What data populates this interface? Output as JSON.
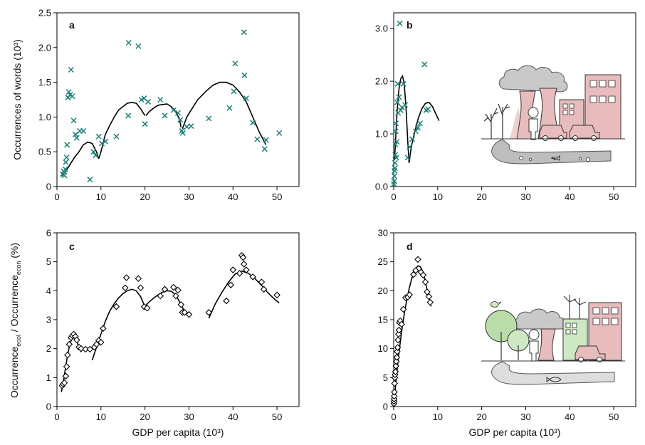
{
  "figure": {
    "xlabel": "GDP per capita (10³)",
    "ylabel_top": "Occurrences of words (10³)",
    "ylabel_bottom": {
      "main1": "Occurrence",
      "sub1": "ecol",
      "sep": " / Occurrence",
      "sub2": "econ",
      "tail": " (%)"
    }
  },
  "colors": {
    "cross_marker": "#1e7f7a",
    "diamond_marker": "#000000",
    "grey_smoke": "#c9c9c9",
    "pink_building": "#e8bcbc",
    "green_building": "#cfe8c4",
    "green_tree": "#b9dca8",
    "road_grey": "#bdbdbd"
  },
  "chart_data": [
    {
      "panel": "a",
      "type": "scatter",
      "marker": "x",
      "xlim": [
        0,
        55
      ],
      "ylim": [
        0,
        2.5
      ],
      "xticks": [
        "0",
        "10",
        "20",
        "30",
        "40",
        "50"
      ],
      "yticks": [
        "0",
        "0.5",
        "1.0",
        "1.5",
        "2.0",
        "2.5"
      ],
      "points": [
        [
          1.3,
          0.18
        ],
        [
          1.5,
          0.22
        ],
        [
          1.7,
          0.16
        ],
        [
          1.9,
          0.25
        ],
        [
          2.0,
          0.35
        ],
        [
          2.2,
          0.42
        ],
        [
          2.3,
          0.6
        ],
        [
          2.5,
          1.28
        ],
        [
          2.7,
          1.36
        ],
        [
          3.0,
          1.32
        ],
        [
          3.2,
          1.68
        ],
        [
          3.5,
          1.3
        ],
        [
          3.8,
          0.95
        ],
        [
          4.2,
          0.75
        ],
        [
          4.5,
          0.7
        ],
        [
          5.2,
          0.8
        ],
        [
          6.0,
          0.8
        ],
        [
          7.5,
          0.1
        ],
        [
          8.3,
          0.5
        ],
        [
          8.8,
          0.45
        ],
        [
          9.5,
          0.72
        ],
        [
          10.2,
          0.62
        ],
        [
          11.0,
          0.65
        ],
        [
          13.5,
          0.72
        ],
        [
          16.2,
          1.02
        ],
        [
          16.3,
          2.07
        ],
        [
          18.5,
          2.02
        ],
        [
          19.2,
          1.25
        ],
        [
          19.8,
          1.27
        ],
        [
          20.0,
          0.9
        ],
        [
          20.7,
          1.22
        ],
        [
          23.5,
          1.25
        ],
        [
          24.5,
          1.02
        ],
        [
          26.5,
          1.1
        ],
        [
          27.5,
          1.06
        ],
        [
          28.0,
          0.96
        ],
        [
          28.4,
          0.8
        ],
        [
          28.6,
          0.77
        ],
        [
          29.5,
          0.86
        ],
        [
          30.5,
          0.87
        ],
        [
          34.5,
          0.98
        ],
        [
          39.2,
          1.13
        ],
        [
          40.2,
          1.37
        ],
        [
          40.5,
          1.77
        ],
        [
          42.5,
          2.22
        ],
        [
          42.6,
          1.6
        ],
        [
          43.0,
          1.27
        ],
        [
          44.5,
          0.92
        ],
        [
          45.5,
          0.68
        ],
        [
          47.2,
          0.54
        ],
        [
          47.5,
          0.67
        ],
        [
          50.5,
          0.77
        ]
      ],
      "fits": [
        [
          [
            1.0,
            0.15
          ],
          [
            2.0,
            0.22
          ],
          [
            3.0,
            0.32
          ],
          [
            4.0,
            0.42
          ],
          [
            5.0,
            0.5
          ],
          [
            6.0,
            0.6
          ],
          [
            7.0,
            0.64
          ],
          [
            8.0,
            0.62
          ],
          [
            9.0,
            0.5
          ],
          [
            9.5,
            0.4
          ]
        ],
        [
          [
            9.5,
            0.4
          ],
          [
            10.0,
            0.5
          ],
          [
            11.0,
            0.75
          ],
          [
            12.0,
            0.88
          ],
          [
            13.0,
            1.0
          ],
          [
            14.0,
            1.1
          ],
          [
            15.0,
            1.15
          ],
          [
            16.0,
            1.2
          ],
          [
            17.0,
            1.21
          ],
          [
            18.0,
            1.2
          ],
          [
            19.0,
            1.12
          ],
          [
            20.0,
            1.02
          ]
        ],
        [
          [
            20.2,
            1.02
          ],
          [
            21.0,
            1.08
          ],
          [
            22.0,
            1.13
          ],
          [
            23.0,
            1.17
          ],
          [
            24.0,
            1.18
          ],
          [
            25.0,
            1.19
          ],
          [
            26.0,
            1.15
          ],
          [
            27.0,
            1.07
          ],
          [
            27.8,
            0.98
          ],
          [
            28.2,
            0.85
          ]
        ],
        [
          [
            28.5,
            0.83
          ],
          [
            29.5,
            1.0
          ],
          [
            30.5,
            1.1
          ],
          [
            32.0,
            1.25
          ],
          [
            34.0,
            1.38
          ],
          [
            35.5,
            1.46
          ],
          [
            37.0,
            1.5
          ],
          [
            38.5,
            1.5
          ],
          [
            40.0,
            1.46
          ],
          [
            41.5,
            1.36
          ],
          [
            43.0,
            1.22
          ],
          [
            44.5,
            1.0
          ],
          [
            46.0,
            0.78
          ],
          [
            47.5,
            0.6
          ]
        ]
      ]
    },
    {
      "panel": "b",
      "type": "scatter",
      "marker": "x",
      "xlim": [
        0,
        55
      ],
      "ylim": [
        0,
        3.3
      ],
      "xticks": [
        "0",
        "10",
        "20",
        "30",
        "40",
        "50"
      ],
      "yticks": [
        "0.0",
        "1.0",
        "2.0",
        "3.0"
      ],
      "points": [
        [
          0.05,
          0.05
        ],
        [
          0.1,
          0.1
        ],
        [
          0.15,
          0.2
        ],
        [
          0.2,
          0.3
        ],
        [
          0.25,
          0.35
        ],
        [
          0.3,
          0.45
        ],
        [
          0.35,
          0.6
        ],
        [
          0.4,
          0.8
        ],
        [
          0.45,
          1.05
        ],
        [
          0.5,
          1.2
        ],
        [
          0.6,
          0.55
        ],
        [
          0.7,
          0.85
        ],
        [
          0.8,
          1.6
        ],
        [
          0.9,
          1.95
        ],
        [
          1.0,
          1.4
        ],
        [
          1.2,
          1.7
        ],
        [
          1.4,
          3.1
        ],
        [
          1.6,
          1.45
        ],
        [
          1.9,
          1.5
        ],
        [
          2.2,
          1.95
        ],
        [
          2.6,
          1.55
        ],
        [
          3.2,
          0.55
        ],
        [
          3.6,
          0.75
        ],
        [
          4.2,
          0.9
        ],
        [
          5.0,
          1.05
        ],
        [
          5.5,
          1.12
        ],
        [
          6.0,
          1.2
        ],
        [
          7.0,
          2.32
        ],
        [
          7.4,
          1.45
        ],
        [
          7.8,
          1.47
        ]
      ],
      "fits": [
        [
          [
            0.2,
            0.5
          ],
          [
            0.5,
            1.0
          ],
          [
            0.8,
            1.45
          ],
          [
            1.2,
            1.85
          ],
          [
            1.6,
            2.05
          ],
          [
            2.0,
            2.1
          ],
          [
            2.4,
            1.95
          ],
          [
            2.8,
            1.5
          ],
          [
            3.2,
            0.85
          ],
          [
            3.5,
            0.45
          ]
        ],
        [
          [
            3.5,
            0.45
          ],
          [
            4.0,
            0.75
          ],
          [
            4.8,
            1.05
          ],
          [
            5.6,
            1.3
          ],
          [
            6.4,
            1.48
          ],
          [
            7.2,
            1.58
          ],
          [
            8.0,
            1.6
          ],
          [
            8.8,
            1.52
          ],
          [
            9.6,
            1.38
          ],
          [
            10.3,
            1.25
          ]
        ]
      ]
    },
    {
      "panel": "c",
      "type": "scatter",
      "marker": "diamond",
      "xlim": [
        0,
        55
      ],
      "ylim": [
        0,
        6
      ],
      "xticks": [
        "0",
        "10",
        "20",
        "30",
        "40",
        "50"
      ],
      "yticks": [
        "0",
        "1",
        "2",
        "3",
        "4",
        "5",
        "6"
      ],
      "points": [
        [
          1.2,
          0.72
        ],
        [
          1.4,
          0.78
        ],
        [
          1.7,
          0.82
        ],
        [
          2.0,
          1.05
        ],
        [
          2.2,
          1.38
        ],
        [
          2.4,
          1.78
        ],
        [
          2.8,
          2.15
        ],
        [
          3.2,
          2.38
        ],
        [
          3.5,
          2.45
        ],
        [
          3.8,
          2.5
        ],
        [
          4.2,
          2.42
        ],
        [
          4.5,
          2.3
        ],
        [
          5.0,
          2.05
        ],
        [
          5.5,
          2.0
        ],
        [
          6.5,
          1.98
        ],
        [
          7.5,
          1.98
        ],
        [
          8.5,
          2.05
        ],
        [
          9.0,
          2.15
        ],
        [
          9.5,
          2.28
        ],
        [
          10.0,
          2.22
        ],
        [
          10.5,
          2.7
        ],
        [
          13.5,
          3.45
        ],
        [
          15.5,
          4.1
        ],
        [
          15.8,
          4.45
        ],
        [
          18.5,
          4.42
        ],
        [
          19.0,
          4.1
        ],
        [
          19.8,
          3.45
        ],
        [
          20.5,
          3.4
        ],
        [
          23.5,
          3.82
        ],
        [
          24.5,
          4.05
        ],
        [
          26.5,
          4.12
        ],
        [
          27.0,
          3.82
        ],
        [
          27.5,
          4.02
        ],
        [
          28.2,
          3.52
        ],
        [
          28.5,
          3.25
        ],
        [
          29.0,
          3.25
        ],
        [
          30.0,
          3.18
        ],
        [
          34.5,
          3.25
        ],
        [
          38.5,
          3.65
        ],
        [
          39.5,
          4.2
        ],
        [
          40.0,
          4.72
        ],
        [
          41.5,
          4.6
        ],
        [
          42.0,
          5.22
        ],
        [
          42.3,
          5.15
        ],
        [
          42.5,
          4.92
        ],
        [
          43.0,
          4.72
        ],
        [
          44.5,
          4.48
        ],
        [
          46.5,
          4.3
        ],
        [
          47.0,
          4.05
        ],
        [
          50.0,
          3.85
        ]
      ],
      "fits": [
        [
          [
            1.0,
            0.5
          ],
          [
            1.5,
            0.9
          ],
          [
            2.0,
            1.4
          ],
          [
            2.5,
            1.85
          ],
          [
            3.0,
            2.2
          ],
          [
            3.5,
            2.35
          ],
          [
            4.0,
            2.38
          ],
          [
            4.5,
            2.25
          ],
          [
            5.0,
            2.05
          ],
          [
            5.5,
            1.88
          ]
        ],
        [
          [
            8.0,
            1.6
          ],
          [
            9.0,
            2.05
          ],
          [
            10.0,
            2.5
          ],
          [
            11.0,
            2.95
          ],
          [
            12.0,
            3.3
          ],
          [
            13.0,
            3.55
          ],
          [
            14.0,
            3.75
          ],
          [
            15.0,
            3.9
          ],
          [
            16.0,
            4.0
          ],
          [
            17.0,
            4.05
          ],
          [
            18.0,
            4.0
          ],
          [
            19.0,
            3.8
          ],
          [
            20.0,
            3.45
          ]
        ],
        [
          [
            20.2,
            3.5
          ],
          [
            21.0,
            3.62
          ],
          [
            22.0,
            3.75
          ],
          [
            23.0,
            3.86
          ],
          [
            24.0,
            3.95
          ],
          [
            25.0,
            4.0
          ],
          [
            26.0,
            3.98
          ],
          [
            27.0,
            3.85
          ],
          [
            28.0,
            3.58
          ],
          [
            29.0,
            3.28
          ],
          [
            30.0,
            3.1
          ]
        ],
        [
          [
            34.5,
            3.05
          ],
          [
            36.0,
            3.55
          ],
          [
            37.5,
            3.95
          ],
          [
            39.0,
            4.3
          ],
          [
            40.5,
            4.58
          ],
          [
            42.0,
            4.68
          ],
          [
            43.5,
            4.6
          ],
          [
            45.0,
            4.42
          ],
          [
            46.5,
            4.18
          ],
          [
            48.0,
            3.92
          ],
          [
            49.5,
            3.7
          ],
          [
            50.5,
            3.58
          ]
        ]
      ]
    },
    {
      "panel": "d",
      "type": "scatter",
      "marker": "diamond",
      "xlim": [
        0,
        55
      ],
      "ylim": [
        0,
        30
      ],
      "xticks": [
        "0",
        "10",
        "20",
        "30",
        "40",
        "50"
      ],
      "yticks": [
        "0",
        "5",
        "10",
        "15",
        "20",
        "25",
        "30"
      ],
      "points": [
        [
          0.05,
          0.5
        ],
        [
          0.08,
          0.9
        ],
        [
          0.1,
          1.3
        ],
        [
          0.12,
          1.8
        ],
        [
          0.15,
          2.5
        ],
        [
          0.2,
          4.0
        ],
        [
          0.25,
          5.0
        ],
        [
          0.3,
          5.5
        ],
        [
          0.4,
          6.0
        ],
        [
          0.5,
          7.0
        ],
        [
          0.6,
          7.8
        ],
        [
          0.7,
          8.5
        ],
        [
          0.8,
          9.5
        ],
        [
          0.9,
          10.2
        ],
        [
          1.0,
          11.5
        ],
        [
          1.1,
          12.5
        ],
        [
          1.2,
          13.2
        ],
        [
          1.3,
          14.5
        ],
        [
          1.5,
          14.8
        ],
        [
          1.8,
          14.2
        ],
        [
          2.2,
          16.8
        ],
        [
          2.7,
          18.8
        ],
        [
          3.2,
          18.9
        ],
        [
          3.6,
          19.3
        ],
        [
          4.5,
          22.8
        ],
        [
          5.0,
          23.5
        ],
        [
          5.5,
          25.4
        ],
        [
          6.2,
          23.2
        ],
        [
          6.7,
          22.7
        ],
        [
          7.2,
          21.5
        ],
        [
          7.6,
          19.8
        ],
        [
          8.0,
          19.0
        ],
        [
          8.3,
          18.0
        ]
      ],
      "fits": [
        [
          [
            0.0,
            0.0
          ],
          [
            0.3,
            2.5
          ],
          [
            0.6,
            5.0
          ],
          [
            1.0,
            8.0
          ],
          [
            1.5,
            11.2
          ],
          [
            2.0,
            14.0
          ],
          [
            2.5,
            16.5
          ],
          [
            3.0,
            18.5
          ],
          [
            3.5,
            20.3
          ],
          [
            4.0,
            21.8
          ],
          [
            4.5,
            23.0
          ],
          [
            5.0,
            23.8
          ],
          [
            5.5,
            24.3
          ],
          [
            6.0,
            24.2
          ],
          [
            6.5,
            23.5
          ],
          [
            7.0,
            22.2
          ],
          [
            7.5,
            20.5
          ],
          [
            8.0,
            18.8
          ],
          [
            8.5,
            17.3
          ]
        ]
      ]
    }
  ]
}
